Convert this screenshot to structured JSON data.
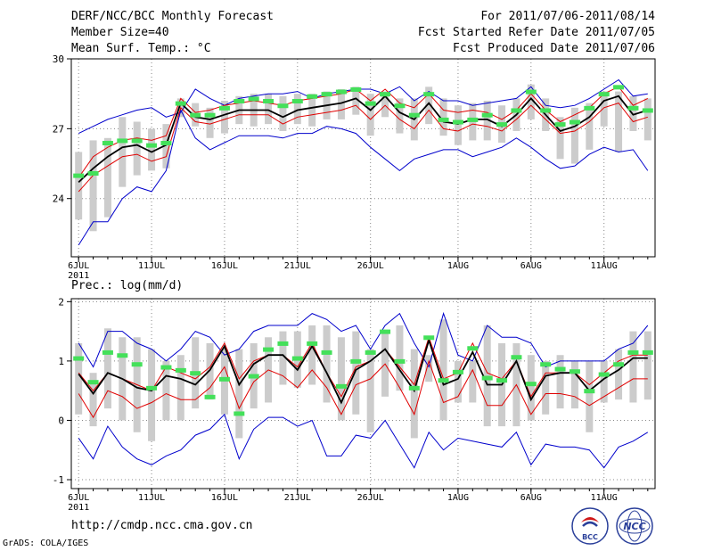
{
  "header": {
    "title": "DERF/NCC/BCC Monthly Forecast",
    "member_size": "Member Size=40",
    "variable": "Mean Surf. Temp.: °C",
    "period": "For 2011/07/06-2011/08/14",
    "started": "Fcst Started Refer Date 2011/07/05",
    "produced": "Fcst Produced Date 2011/07/06"
  },
  "footer": {
    "url": "http://cmdp.ncc.cma.gov.cn",
    "grads": "GrADS: COLA/IGES",
    "logo_bcc": "BCC",
    "logo_ncc": "NCC"
  },
  "colors": {
    "blue": "#0000cc",
    "red": "#e00000",
    "black": "#000000",
    "green": "#44e05a",
    "box": "#cccccc",
    "grid": "#888888"
  },
  "chart_data": [
    {
      "type": "line",
      "title": "Mean Surf. Temp.: °C",
      "x_ticks": [
        "6JUL",
        "11JUL",
        "16JUL",
        "21JUL",
        "26JUL",
        "1AUG",
        "6AUG",
        "11AUG"
      ],
      "x_tick_days": [
        0,
        5,
        10,
        15,
        20,
        26,
        31,
        36
      ],
      "x_sub_label": "2011",
      "ylim": [
        21.5,
        30
      ],
      "y_ticks": [
        24,
        27,
        30
      ],
      "days": 40,
      "series": [
        {
          "name": "max",
          "values": [
            26.8,
            27.1,
            27.4,
            27.6,
            27.8,
            27.9,
            27.5,
            27.7,
            28.7,
            28.3,
            28.0,
            28.3,
            28.4,
            28.5,
            28.5,
            28.6,
            28.3,
            28.5,
            28.6,
            28.7,
            28.7,
            28.5,
            28.8,
            28.2,
            28.6,
            28.2,
            28.2,
            28.0,
            28.1,
            28.2,
            28.3,
            28.8,
            28.0,
            27.9,
            28.0,
            28.3,
            28.7,
            29.1,
            28.4,
            28.5
          ]
        },
        {
          "name": "upper",
          "values": [
            24.9,
            25.8,
            26.2,
            26.5,
            26.6,
            26.5,
            26.7,
            28.3,
            27.7,
            27.8,
            28.0,
            28.1,
            28.2,
            28.1,
            28.0,
            28.2,
            28.3,
            28.4,
            28.5,
            28.7,
            28.2,
            28.7,
            28.1,
            27.9,
            28.5,
            27.8,
            27.7,
            27.8,
            27.7,
            27.4,
            27.8,
            28.5,
            27.8,
            27.3,
            27.6,
            27.9,
            28.5,
            28.8,
            28.0,
            28.3
          ]
        },
        {
          "name": "mean",
          "values": [
            24.7,
            25.3,
            25.8,
            26.2,
            26.3,
            26.0,
            26.3,
            28.1,
            27.5,
            27.4,
            27.6,
            27.8,
            27.8,
            27.8,
            27.5,
            27.8,
            27.9,
            28.0,
            28.1,
            28.3,
            27.8,
            28.4,
            27.7,
            27.4,
            28.1,
            27.3,
            27.2,
            27.4,
            27.4,
            27.1,
            27.6,
            28.3,
            27.6,
            26.9,
            27.1,
            27.5,
            28.2,
            28.4,
            27.6,
            27.8
          ]
        },
        {
          "name": "lower",
          "values": [
            24.3,
            25.0,
            25.4,
            25.8,
            25.9,
            25.6,
            25.8,
            27.9,
            27.3,
            27.2,
            27.4,
            27.6,
            27.6,
            27.6,
            27.2,
            27.5,
            27.6,
            27.7,
            27.8,
            28.0,
            27.4,
            28.0,
            27.4,
            27.0,
            27.8,
            27.0,
            26.9,
            27.2,
            27.1,
            26.9,
            27.4,
            28.0,
            27.4,
            26.8,
            26.9,
            27.3,
            27.9,
            28.1,
            27.3,
            27.5
          ]
        },
        {
          "name": "min",
          "values": [
            22.0,
            23.0,
            23.0,
            24.0,
            24.5,
            24.3,
            25.2,
            27.8,
            26.6,
            26.1,
            26.4,
            26.7,
            26.7,
            26.7,
            26.6,
            26.8,
            26.8,
            27.1,
            27.0,
            26.8,
            26.2,
            25.7,
            25.2,
            25.7,
            25.9,
            26.1,
            26.1,
            25.8,
            26.0,
            26.2,
            26.6,
            26.2,
            25.7,
            25.3,
            25.4,
            25.9,
            26.2,
            26.0,
            26.1,
            25.2
          ]
        },
        {
          "name": "observed",
          "values": [
            25.0,
            25.1,
            26.4,
            26.5,
            26.5,
            26.3,
            26.4,
            28.1,
            27.6,
            27.6,
            27.9,
            28.2,
            28.3,
            28.2,
            28.0,
            28.2,
            28.4,
            28.5,
            28.6,
            28.7,
            28.1,
            28.5,
            28.0,
            27.6,
            28.5,
            27.4,
            27.3,
            27.4,
            27.6,
            27.2,
            27.8,
            28.6,
            27.8,
            27.2,
            27.3,
            27.9,
            28.5,
            28.8,
            27.9,
            27.8
          ]
        },
        {
          "name": "box_top",
          "values": [
            26.0,
            26.5,
            26.6,
            27.5,
            27.3,
            27.0,
            27.2,
            28.3,
            28.1,
            27.9,
            28.2,
            28.4,
            28.5,
            28.5,
            28.4,
            28.5,
            28.5,
            28.6,
            28.7,
            28.8,
            28.5,
            28.6,
            28.3,
            28.3,
            28.8,
            28.3,
            28.0,
            28.1,
            28.2,
            28.0,
            28.3,
            28.9,
            28.3,
            27.5,
            27.9,
            28.1,
            28.6,
            28.6,
            28.4,
            28.3
          ]
        },
        {
          "name": "box_bottom",
          "values": [
            23.1,
            22.6,
            23.2,
            24.5,
            25.0,
            25.2,
            25.3,
            27.5,
            27.1,
            26.6,
            26.8,
            27.2,
            27.1,
            27.2,
            26.9,
            27.2,
            27.1,
            27.4,
            27.4,
            27.6,
            26.7,
            27.5,
            26.8,
            26.5,
            27.2,
            26.7,
            26.3,
            26.5,
            26.5,
            26.4,
            26.9,
            27.4,
            26.9,
            25.7,
            25.5,
            26.1,
            27.1,
            26.0,
            26.9,
            26.5
          ]
        }
      ]
    },
    {
      "type": "line",
      "title": "Prec.: log(mm/d)",
      "x_ticks": [
        "6JUL",
        "11JUL",
        "16JUL",
        "21JUL",
        "26JUL",
        "1AUG",
        "6AUG",
        "11AUG"
      ],
      "x_tick_days": [
        0,
        5,
        10,
        15,
        20,
        26,
        31,
        36
      ],
      "x_sub_label": "2011",
      "ylim": [
        -1.15,
        2.05
      ],
      "y_ticks": [
        -1,
        0,
        1,
        2
      ],
      "days": 40,
      "series": [
        {
          "name": "max",
          "values": [
            1.3,
            0.9,
            1.5,
            1.5,
            1.3,
            1.2,
            1.0,
            1.2,
            1.5,
            1.4,
            1.1,
            1.2,
            1.5,
            1.6,
            1.6,
            1.6,
            1.8,
            1.7,
            1.5,
            1.6,
            1.2,
            1.6,
            1.8,
            1.3,
            0.9,
            1.8,
            1.1,
            1.0,
            1.6,
            1.4,
            1.4,
            1.3,
            0.9,
            1.0,
            1.0,
            1.0,
            1.0,
            1.2,
            1.3,
            1.6
          ]
        },
        {
          "name": "upper",
          "values": [
            0.8,
            0.5,
            0.8,
            0.7,
            0.6,
            0.5,
            0.9,
            0.8,
            0.7,
            0.9,
            1.3,
            0.7,
            1.0,
            1.1,
            1.1,
            0.9,
            1.3,
            0.8,
            0.4,
            0.9,
            1.0,
            1.2,
            0.9,
            0.6,
            1.4,
            0.7,
            0.8,
            1.3,
            0.8,
            0.7,
            1.0,
            0.4,
            0.8,
            0.8,
            0.8,
            0.6,
            0.8,
            1.0,
            1.1,
            1.1
          ]
        },
        {
          "name": "mean",
          "values": [
            0.78,
            0.45,
            0.8,
            0.7,
            0.55,
            0.5,
            0.75,
            0.7,
            0.6,
            0.85,
            1.25,
            0.6,
            0.95,
            1.1,
            1.1,
            0.85,
            1.25,
            0.8,
            0.3,
            0.85,
            1.0,
            1.2,
            0.85,
            0.5,
            1.35,
            0.6,
            0.7,
            1.15,
            0.6,
            0.6,
            1.0,
            0.35,
            0.75,
            0.8,
            0.8,
            0.5,
            0.7,
            0.85,
            1.05,
            1.05
          ]
        },
        {
          "name": "lower",
          "values": [
            0.45,
            0.05,
            0.5,
            0.4,
            0.2,
            0.3,
            0.45,
            0.35,
            0.35,
            0.55,
            0.9,
            0.2,
            0.65,
            0.85,
            0.75,
            0.55,
            0.85,
            0.55,
            0.1,
            0.6,
            0.7,
            0.95,
            0.55,
            0.1,
            1.0,
            0.3,
            0.4,
            0.85,
            0.25,
            0.25,
            0.6,
            0.1,
            0.45,
            0.45,
            0.4,
            0.25,
            0.4,
            0.55,
            0.7,
            0.7
          ]
        },
        {
          "name": "min",
          "values": [
            -0.3,
            -0.65,
            -0.1,
            -0.45,
            -0.65,
            -0.75,
            -0.6,
            -0.5,
            -0.25,
            -0.15,
            0.1,
            -0.65,
            -0.15,
            0.05,
            0.05,
            -0.1,
            0.0,
            -0.6,
            -0.6,
            -0.25,
            -0.3,
            0.0,
            -0.4,
            -0.8,
            -0.2,
            -0.5,
            -0.3,
            -0.35,
            -0.4,
            -0.45,
            -0.2,
            -0.75,
            -0.4,
            -0.45,
            -0.45,
            -0.5,
            -0.8,
            -0.45,
            -0.35,
            -0.2
          ]
        },
        {
          "name": "observed",
          "values": [
            1.05,
            0.65,
            1.15,
            1.1,
            0.95,
            0.55,
            0.9,
            0.85,
            0.8,
            0.4,
            0.7,
            0.12,
            0.75,
            1.2,
            1.3,
            1.05,
            1.3,
            1.15,
            0.58,
            1.0,
            1.15,
            1.5,
            1.0,
            0.55,
            1.4,
            0.68,
            0.82,
            1.22,
            0.72,
            0.68,
            1.07,
            0.62,
            0.95,
            0.87,
            0.83,
            0.5,
            0.78,
            0.95,
            1.15,
            1.15
          ]
        },
        {
          "name": "box_top",
          "values": [
            1.3,
            0.8,
            1.55,
            1.4,
            1.4,
            1.2,
            1.0,
            1.1,
            1.4,
            1.3,
            1.2,
            1.2,
            1.3,
            1.4,
            1.5,
            1.5,
            1.6,
            1.6,
            1.4,
            1.5,
            1.2,
            1.5,
            1.6,
            1.2,
            1.1,
            1.7,
            1.0,
            1.0,
            1.6,
            1.3,
            1.3,
            1.1,
            1.0,
            1.1,
            1.0,
            1.0,
            1.0,
            1.2,
            1.5,
            1.5
          ]
        },
        {
          "name": "box_bottom",
          "values": [
            0.1,
            -0.1,
            0.2,
            0.0,
            -0.2,
            -0.35,
            0.0,
            0.0,
            0.2,
            0.35,
            0.1,
            -0.3,
            0.2,
            0.3,
            0.6,
            0.55,
            0.6,
            0.3,
            0.0,
            0.1,
            -0.2,
            0.4,
            0.5,
            -0.3,
            0.65,
            0.0,
            0.3,
            0.3,
            -0.1,
            -0.1,
            -0.1,
            0.0,
            0.1,
            0.2,
            0.2,
            -0.2,
            0.3,
            0.35,
            0.3,
            0.35
          ]
        }
      ]
    }
  ]
}
